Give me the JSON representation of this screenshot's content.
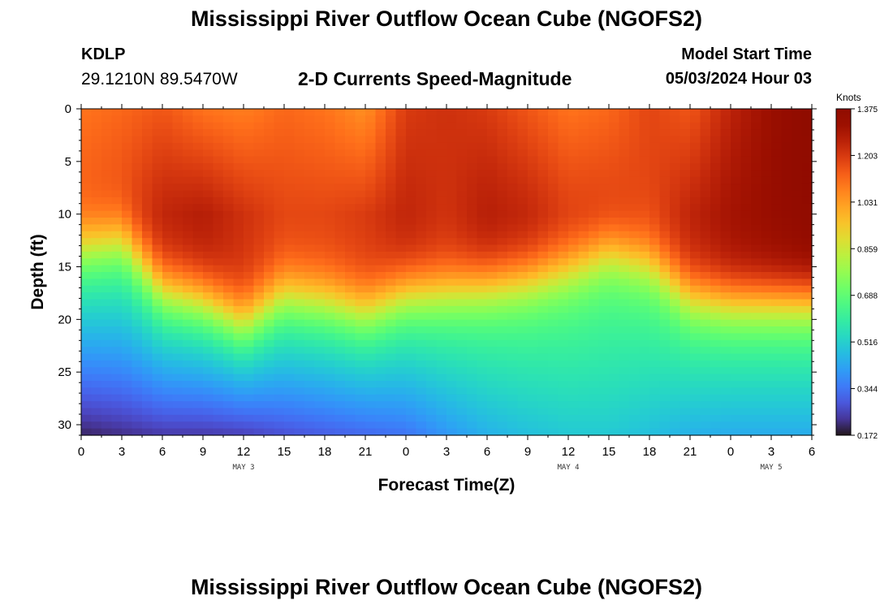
{
  "header": {
    "title": "Mississippi River Outflow Ocean Cube (NGOFS2)",
    "station_id": "KDLP",
    "station_coords": "29.1210N  89.5470W",
    "subtitle": "2-D Currents Speed-Magnitude",
    "model_start_label": "Model Start Time",
    "model_start_time": "05/03/2024 Hour 03"
  },
  "footer": {
    "title": "Mississippi River Outflow Ocean Cube (NGOFS2)"
  },
  "chart_data": {
    "type": "heatmap",
    "title": "2-D Currents Speed-Magnitude",
    "xlabel": "Forecast Time(Z)",
    "ylabel": "Depth (ft)",
    "x_tick_labels": [
      "0",
      "3",
      "6",
      "9",
      "12",
      "15",
      "18",
      "21",
      "0",
      "3",
      "6",
      "9",
      "12",
      "15",
      "18",
      "21",
      "0",
      "3",
      "6"
    ],
    "x_range_hours": [
      0,
      54
    ],
    "date_labels": [
      {
        "text": "MAY 3",
        "hour": 12
      },
      {
        "text": "MAY 4",
        "hour": 36
      },
      {
        "text": "MAY 5",
        "hour": 51
      }
    ],
    "y_ticks": [
      0,
      5,
      10,
      15,
      20,
      25,
      30
    ],
    "y_tick_labels": [
      "0",
      "5",
      "10",
      "15",
      "20",
      "25",
      "30"
    ],
    "ylim": [
      0,
      31
    ],
    "y_inverted": true,
    "colorbar": {
      "unit": "Knots",
      "min": 0.172,
      "max": 1.375,
      "tick_labels": [
        "1.375",
        "1.203",
        "1.031",
        "0.859",
        "0.688",
        "0.516",
        "0.344",
        "0.172"
      ],
      "colormap": "turbo"
    },
    "description": "Current speed (knots) vs forecast hour and depth; ~1.0-1.37 kt in upper 15 ft, decreasing to ~0.2-0.4 kt near 30 ft",
    "field_profile": {
      "hours": [
        0,
        3,
        6,
        9,
        12,
        15,
        18,
        21,
        24,
        27,
        30,
        33,
        36,
        39,
        42,
        45,
        48,
        51,
        54
      ],
      "surface_speed": [
        1.1,
        1.12,
        1.15,
        1.1,
        1.08,
        1.12,
        1.1,
        1.05,
        1.2,
        1.22,
        1.2,
        1.15,
        1.1,
        1.12,
        1.18,
        1.15,
        1.25,
        1.32,
        1.37
      ],
      "mid_speed": [
        1.15,
        1.18,
        1.25,
        1.27,
        1.22,
        1.18,
        1.18,
        1.2,
        1.25,
        1.22,
        1.27,
        1.25,
        1.2,
        1.2,
        1.18,
        1.25,
        1.3,
        1.33,
        1.36
      ],
      "mixed_layer_depth_ft": [
        12.5,
        12.0,
        16.5,
        17.5,
        19.5,
        17.0,
        17.5,
        18.5,
        17.0,
        16.8,
        16.5,
        16.0,
        15.0,
        13.5,
        14.5,
        17.5,
        18.0,
        18.0,
        18.0
      ],
      "bottom_speed": [
        0.2,
        0.22,
        0.24,
        0.24,
        0.25,
        0.28,
        0.3,
        0.32,
        0.34,
        0.4,
        0.45,
        0.48,
        0.5,
        0.5,
        0.48,
        0.45,
        0.44,
        0.44,
        0.44
      ]
    }
  }
}
